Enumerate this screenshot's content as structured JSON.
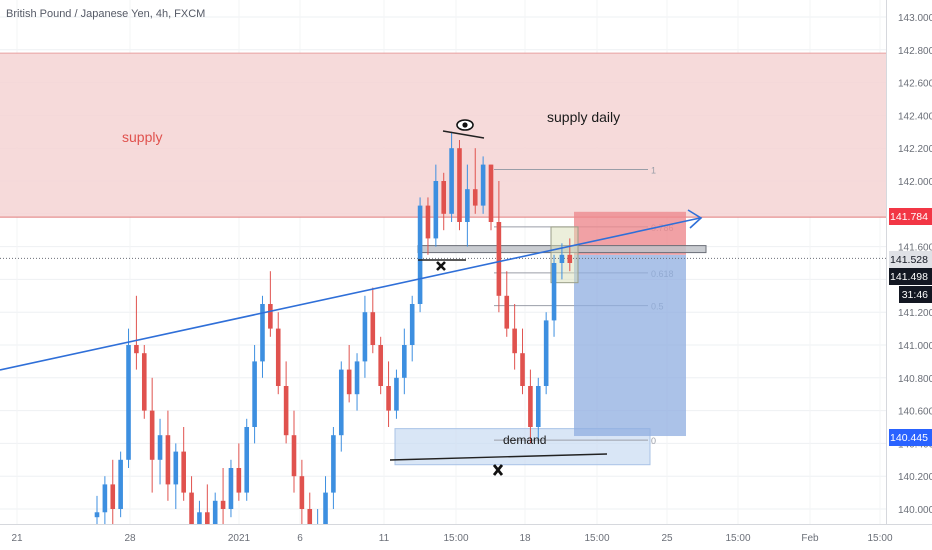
{
  "header": {
    "symbol_title": "British Pound / Japanese Yen, 4h, FXCM"
  },
  "price_tags": {
    "upper_line": "141.784",
    "current": "141.528",
    "last": "141.498",
    "countdown": "31:46",
    "demand_level": "140.445"
  },
  "colors": {
    "bull": "#3d8fe0",
    "bear": "#e0524e",
    "supply_zone": "#f5d4d4",
    "demand_zone": "#c9dcf2",
    "trendline": "#2f6fd8",
    "stop_box": "#ee8a8f",
    "target_box": "#8faee0",
    "tag_red": "#f23645",
    "tag_blue": "#2962ff",
    "tag_black": "#131722"
  },
  "annotations": {
    "supply": "supply",
    "supply_daily": "supply daily",
    "demand": "demand",
    "eye_icon": "eye-icon",
    "cross_icon": "cross-icon"
  },
  "chart_data": {
    "type": "candlestick",
    "title": "British Pound / Japanese Yen, 4h, FXCM",
    "ylim": [
      139.96,
      143.08
    ],
    "yticks": [
      "143.000",
      "142.800",
      "142.600",
      "142.400",
      "142.200",
      "142.000",
      "141.800",
      "141.600",
      "141.400",
      "141.200",
      "141.000",
      "140.800",
      "140.600",
      "140.400",
      "140.200",
      "140.000"
    ],
    "xticks": [
      "21",
      "28",
      "2021",
      "6",
      "11",
      "15:00",
      "18",
      "15:00",
      "25",
      "15:00",
      "Feb",
      "15:00"
    ],
    "zones": {
      "supply": [
        141.78,
        142.78
      ],
      "demand": [
        140.27,
        140.49
      ]
    },
    "fibonacci": [
      {
        "level": "1",
        "price": 142.07
      },
      {
        "level": "0.786",
        "price": 141.72
      },
      {
        "level": "0.618",
        "price": 141.44
      },
      {
        "level": "0.5",
        "price": 141.24
      },
      {
        "level": "0",
        "price": 140.42
      }
    ],
    "position": {
      "entry": 141.55,
      "stop": 141.8,
      "target": 140.445
    },
    "candles": [
      {
        "o": 139.95,
        "h": 140.08,
        "l": 139.8,
        "c": 139.98
      },
      {
        "o": 139.98,
        "h": 140.2,
        "l": 139.85,
        "c": 140.15
      },
      {
        "o": 140.15,
        "h": 140.3,
        "l": 139.9,
        "c": 140.0
      },
      {
        "o": 140.0,
        "h": 140.35,
        "l": 139.95,
        "c": 140.3
      },
      {
        "o": 140.3,
        "h": 141.1,
        "l": 140.25,
        "c": 141.0
      },
      {
        "o": 141.0,
        "h": 141.3,
        "l": 140.85,
        "c": 140.95
      },
      {
        "o": 140.95,
        "h": 141.0,
        "l": 140.55,
        "c": 140.6
      },
      {
        "o": 140.6,
        "h": 140.8,
        "l": 140.1,
        "c": 140.3
      },
      {
        "o": 140.3,
        "h": 140.55,
        "l": 140.15,
        "c": 140.45
      },
      {
        "o": 140.45,
        "h": 140.6,
        "l": 140.05,
        "c": 140.15
      },
      {
        "o": 140.15,
        "h": 140.4,
        "l": 140.0,
        "c": 140.35
      },
      {
        "o": 140.35,
        "h": 140.5,
        "l": 140.05,
        "c": 140.1
      },
      {
        "o": 140.1,
        "h": 140.2,
        "l": 139.8,
        "c": 139.9
      },
      {
        "o": 139.9,
        "h": 140.05,
        "l": 139.75,
        "c": 139.98
      },
      {
        "o": 139.98,
        "h": 140.15,
        "l": 139.8,
        "c": 139.85
      },
      {
        "o": 139.85,
        "h": 140.1,
        "l": 139.7,
        "c": 140.05
      },
      {
        "o": 140.05,
        "h": 140.25,
        "l": 139.9,
        "c": 140.0
      },
      {
        "o": 140.0,
        "h": 140.3,
        "l": 139.95,
        "c": 140.25
      },
      {
        "o": 140.25,
        "h": 140.4,
        "l": 140.05,
        "c": 140.1
      },
      {
        "o": 140.1,
        "h": 140.55,
        "l": 140.05,
        "c": 140.5
      },
      {
        "o": 140.5,
        "h": 141.0,
        "l": 140.4,
        "c": 140.9
      },
      {
        "o": 140.9,
        "h": 141.3,
        "l": 140.8,
        "c": 141.25
      },
      {
        "o": 141.25,
        "h": 141.45,
        "l": 141.05,
        "c": 141.1
      },
      {
        "o": 141.1,
        "h": 141.2,
        "l": 140.7,
        "c": 140.75
      },
      {
        "o": 140.75,
        "h": 140.9,
        "l": 140.4,
        "c": 140.45
      },
      {
        "o": 140.45,
        "h": 140.6,
        "l": 140.1,
        "c": 140.2
      },
      {
        "o": 140.2,
        "h": 140.3,
        "l": 139.9,
        "c": 140.0
      },
      {
        "o": 140.0,
        "h": 140.1,
        "l": 139.75,
        "c": 139.85
      },
      {
        "o": 139.85,
        "h": 140.0,
        "l": 139.7,
        "c": 139.9
      },
      {
        "o": 139.9,
        "h": 140.2,
        "l": 139.8,
        "c": 140.1
      },
      {
        "o": 140.1,
        "h": 140.5,
        "l": 140.0,
        "c": 140.45
      },
      {
        "o": 140.45,
        "h": 140.9,
        "l": 140.35,
        "c": 140.85
      },
      {
        "o": 140.85,
        "h": 141.0,
        "l": 140.65,
        "c": 140.7
      },
      {
        "o": 140.7,
        "h": 140.95,
        "l": 140.6,
        "c": 140.9
      },
      {
        "o": 140.9,
        "h": 141.3,
        "l": 140.8,
        "c": 141.2
      },
      {
        "o": 141.2,
        "h": 141.35,
        "l": 140.95,
        "c": 141.0
      },
      {
        "o": 141.0,
        "h": 141.05,
        "l": 140.7,
        "c": 140.75
      },
      {
        "o": 140.75,
        "h": 140.9,
        "l": 140.5,
        "c": 140.6
      },
      {
        "o": 140.6,
        "h": 140.85,
        "l": 140.55,
        "c": 140.8
      },
      {
        "o": 140.8,
        "h": 141.1,
        "l": 140.7,
        "c": 141.0
      },
      {
        "o": 141.0,
        "h": 141.3,
        "l": 140.9,
        "c": 141.25
      },
      {
        "o": 141.25,
        "h": 141.9,
        "l": 141.2,
        "c": 141.85
      },
      {
        "o": 141.85,
        "h": 141.9,
        "l": 141.55,
        "c": 141.65
      },
      {
        "o": 141.65,
        "h": 142.1,
        "l": 141.6,
        "c": 142.0
      },
      {
        "o": 142.0,
        "h": 142.05,
        "l": 141.7,
        "c": 141.8
      },
      {
        "o": 141.8,
        "h": 142.3,
        "l": 141.75,
        "c": 142.2
      },
      {
        "o": 142.2,
        "h": 142.25,
        "l": 141.7,
        "c": 141.75
      },
      {
        "o": 141.75,
        "h": 142.1,
        "l": 141.6,
        "c": 141.95
      },
      {
        "o": 141.95,
        "h": 142.2,
        "l": 141.8,
        "c": 141.85
      },
      {
        "o": 141.85,
        "h": 142.15,
        "l": 141.8,
        "c": 142.1
      },
      {
        "o": 142.1,
        "h": 142.1,
        "l": 141.7,
        "c": 141.75
      },
      {
        "o": 141.75,
        "h": 142.0,
        "l": 141.2,
        "c": 141.3
      },
      {
        "o": 141.3,
        "h": 141.45,
        "l": 141.05,
        "c": 141.1
      },
      {
        "o": 141.1,
        "h": 141.25,
        "l": 140.85,
        "c": 140.95
      },
      {
        "o": 140.95,
        "h": 141.1,
        "l": 140.7,
        "c": 140.75
      },
      {
        "o": 140.75,
        "h": 140.85,
        "l": 140.4,
        "c": 140.5
      },
      {
        "o": 140.5,
        "h": 140.8,
        "l": 140.42,
        "c": 140.75
      },
      {
        "o": 140.75,
        "h": 141.2,
        "l": 140.7,
        "c": 141.15
      },
      {
        "o": 141.15,
        "h": 141.55,
        "l": 141.05,
        "c": 141.5
      },
      {
        "o": 141.5,
        "h": 141.62,
        "l": 141.4,
        "c": 141.55
      },
      {
        "o": 141.55,
        "h": 141.65,
        "l": 141.45,
        "c": 141.5
      }
    ]
  }
}
